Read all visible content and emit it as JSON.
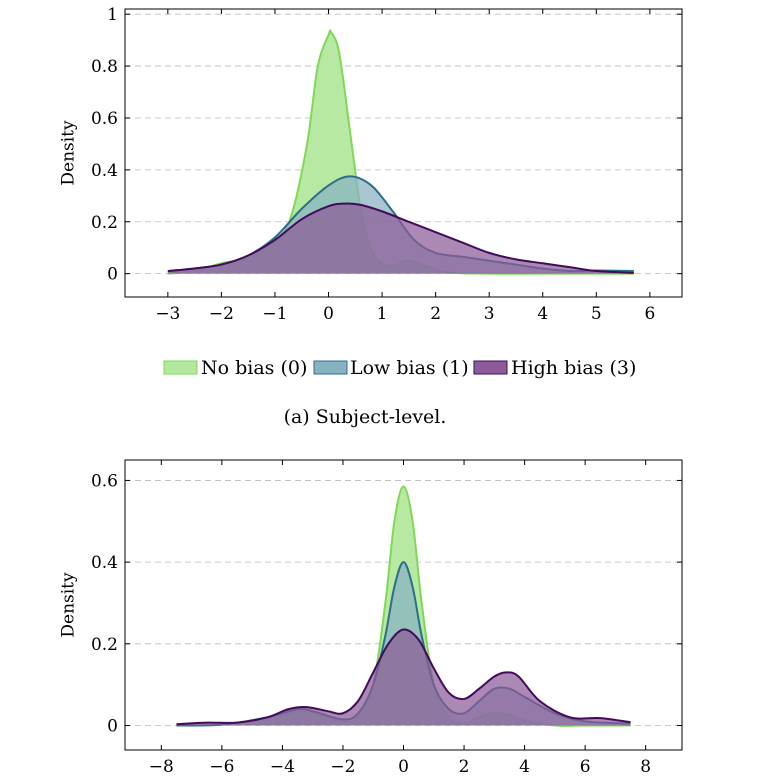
{
  "colors": {
    "no_bias": "#7ed957",
    "no_bias_fill": "#b4e89e",
    "low_bias": "#2c6e8a",
    "low_bias_fill": "#86b2c2",
    "high_bias": "#430a5c",
    "high_bias_fill": "#8c5c99",
    "overlap_fill": "#5a4d70",
    "grid": "#bbbbbb"
  },
  "legend": {
    "items": [
      {
        "label": "No bias (0)",
        "color_key": "no_bias"
      },
      {
        "label": "Low bias (1)",
        "color_key": "low_bias"
      },
      {
        "label": "High bias (3)",
        "color_key": "high_bias"
      }
    ],
    "placement": "between-charts"
  },
  "captions": {
    "a": "(a) Subject-level."
  },
  "chart_data": [
    {
      "type": "area",
      "ylabel": "Density",
      "xlabel": "",
      "xlim": [
        -3.8,
        6.6
      ],
      "ylim": [
        -0.09,
        1.02
      ],
      "xticks": [
        -3,
        -2,
        -1,
        0,
        1,
        2,
        3,
        4,
        5,
        6
      ],
      "xtick_labels": [
        "−3",
        "−2",
        "−1",
        "0",
        "1",
        "2",
        "3",
        "4",
        "5",
        "6"
      ],
      "yticks": [
        0,
        0.2,
        0.4,
        0.6,
        0.8,
        1
      ],
      "ytick_labels": [
        "0",
        "0.2",
        "0.4",
        "0.6",
        "0.8",
        "1"
      ],
      "grid": "horizontal-dashed",
      "series": [
        {
          "name": "No bias (0)",
          "color_key": "no_bias",
          "x": [
            -3,
            -2.5,
            -2,
            -1.5,
            -1,
            -0.7,
            -0.4,
            -0.2,
            0,
            0.05,
            0.2,
            0.4,
            0.6,
            0.8,
            1,
            1.2,
            1.5,
            1.8,
            2.2,
            3,
            4,
            5,
            5.7
          ],
          "y": [
            0,
            0.01,
            0.04,
            0.06,
            0.12,
            0.22,
            0.5,
            0.8,
            0.92,
            0.93,
            0.85,
            0.55,
            0.25,
            0.09,
            0.04,
            0.03,
            0.05,
            0.03,
            0.005,
            0,
            0,
            0,
            0
          ]
        },
        {
          "name": "Low bias (1)",
          "color_key": "low_bias",
          "x": [
            -3,
            -2.5,
            -2,
            -1.5,
            -1,
            -0.5,
            0,
            0.4,
            0.8,
            1.2,
            1.6,
            2,
            2.5,
            3,
            3.5,
            4,
            4.5,
            5,
            5.7
          ],
          "y": [
            0.01,
            0.02,
            0.035,
            0.07,
            0.14,
            0.25,
            0.34,
            0.375,
            0.34,
            0.24,
            0.13,
            0.08,
            0.065,
            0.05,
            0.035,
            0.02,
            0.01,
            0.012,
            0.01
          ]
        },
        {
          "name": "High bias (3)",
          "color_key": "high_bias",
          "x": [
            -3,
            -2.5,
            -2,
            -1.5,
            -1,
            -0.5,
            0,
            0.3,
            0.6,
            1,
            1.5,
            2,
            2.5,
            3,
            3.5,
            4,
            4.5,
            5,
            5.7
          ],
          "y": [
            0.01,
            0.02,
            0.035,
            0.07,
            0.13,
            0.21,
            0.26,
            0.27,
            0.265,
            0.24,
            0.2,
            0.16,
            0.12,
            0.08,
            0.055,
            0.04,
            0.025,
            0.01,
            0.003
          ]
        }
      ]
    },
    {
      "type": "area",
      "ylabel": "Density",
      "xlabel": "",
      "xlim": [
        -9.2,
        9.2
      ],
      "ylim": [
        -0.06,
        0.65
      ],
      "xticks": [
        -8,
        -6,
        -4,
        -2,
        0,
        2,
        4,
        6,
        8
      ],
      "xtick_labels": [
        "−8",
        "−6",
        "−4",
        "−2",
        "0",
        "2",
        "4",
        "6",
        "8"
      ],
      "yticks": [
        0,
        0.2,
        0.4,
        0.6
      ],
      "ytick_labels": [
        "0",
        "0.2",
        "0.4",
        "0.6"
      ],
      "grid": "horizontal-dashed",
      "series": [
        {
          "name": "No bias (0)",
          "color_key": "no_bias",
          "x": [
            -7.5,
            -6,
            -4.5,
            -3.5,
            -3,
            -2,
            -1.5,
            -1,
            -0.6,
            -0.3,
            0,
            0.3,
            0.6,
            1,
            1.5,
            2,
            2.5,
            3,
            3.5,
            4,
            5,
            6,
            7.5
          ],
          "y": [
            0,
            0.002,
            0.02,
            0.035,
            0.03,
            0.01,
            0.02,
            0.1,
            0.3,
            0.5,
            0.585,
            0.5,
            0.3,
            0.1,
            0.02,
            0.005,
            0.02,
            0.03,
            0.025,
            0.012,
            0,
            0,
            0
          ]
        },
        {
          "name": "Low bias (1)",
          "color_key": "low_bias",
          "x": [
            -7.5,
            -6,
            -4.5,
            -3.5,
            -3,
            -2,
            -1.5,
            -1,
            -0.6,
            -0.3,
            0,
            0.3,
            0.6,
            1,
            1.5,
            2,
            2.5,
            3,
            3.5,
            4,
            5,
            6,
            7.5
          ],
          "y": [
            0,
            0.002,
            0.02,
            0.04,
            0.035,
            0.015,
            0.03,
            0.1,
            0.22,
            0.34,
            0.4,
            0.34,
            0.22,
            0.1,
            0.04,
            0.03,
            0.06,
            0.09,
            0.09,
            0.07,
            0.03,
            0.01,
            0.005
          ]
        },
        {
          "name": "High bias (3)",
          "color_key": "high_bias",
          "x": [
            -7.5,
            -6.5,
            -5.5,
            -4.5,
            -3.8,
            -3.2,
            -2.5,
            -2,
            -1.5,
            -1,
            -0.5,
            0,
            0.5,
            1,
            1.5,
            2,
            2.5,
            3,
            3.4,
            3.8,
            4.5,
            5.5,
            6.5,
            7.5
          ],
          "y": [
            0.003,
            0.007,
            0.007,
            0.02,
            0.04,
            0.045,
            0.035,
            0.03,
            0.06,
            0.13,
            0.2,
            0.235,
            0.21,
            0.14,
            0.08,
            0.065,
            0.09,
            0.12,
            0.13,
            0.12,
            0.06,
            0.02,
            0.018,
            0.008
          ]
        }
      ]
    }
  ]
}
